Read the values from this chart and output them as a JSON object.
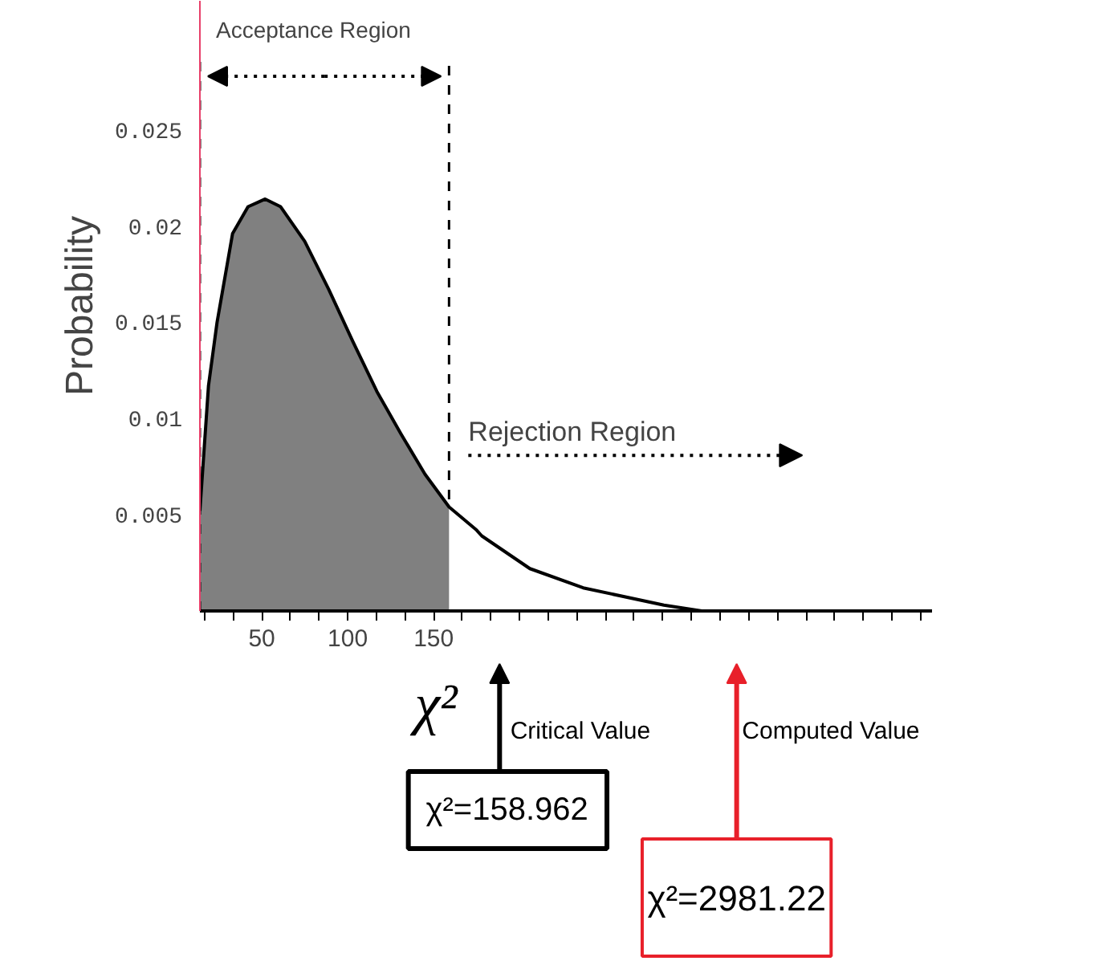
{
  "chart_data": {
    "type": "line",
    "xlabel": "χ²",
    "ylabel": "Probability",
    "xlim": [
      14,
      440
    ],
    "ylim": [
      0,
      0.0317
    ],
    "xticks": [
      {
        "value": 16.7,
        "label": null
      },
      {
        "value": 33.3,
        "label": null
      },
      50,
      {
        "value": 66.7,
        "label": null
      },
      {
        "value": 83.3,
        "label": null
      },
      100,
      {
        "value": 116.7,
        "label": null
      },
      {
        "value": 133.3,
        "label": null
      },
      150,
      {
        "value": 166.7,
        "label": null
      },
      {
        "value": 183.3,
        "label": null
      },
      {
        "value": 200,
        "label": null
      },
      {
        "value": 216.7,
        "label": null
      },
      {
        "value": 233.3,
        "label": null
      },
      {
        "value": 250,
        "label": null
      },
      {
        "value": 266.7,
        "label": null
      },
      {
        "value": 283.3,
        "label": null
      },
      {
        "value": 300,
        "label": null
      },
      {
        "value": 316.7,
        "label": null
      },
      {
        "value": 333.3,
        "label": null
      },
      {
        "value": 350,
        "label": null
      },
      {
        "value": 366.7,
        "label": null
      },
      {
        "value": 383.3,
        "label": null
      },
      {
        "value": 400,
        "label": null
      },
      {
        "value": 416.7,
        "label": null
      },
      {
        "value": 433.3,
        "label": null
      }
    ],
    "yticks": [
      0.005,
      0.01,
      0.015,
      0.02,
      0.025
    ],
    "series": [
      {
        "type": "area",
        "color": "#808080",
        "x": [
          14,
          19,
          24,
          33,
          42,
          52,
          61,
          75,
          89,
          103,
          117,
          131,
          145,
          158.962
        ],
        "values": [
          0.0052,
          0.0117,
          0.015,
          0.0196,
          0.021,
          0.0214,
          0.021,
          0.0192,
          0.0167,
          0.014,
          0.0114,
          0.0092,
          0.0071,
          0.0054
        ]
      },
      {
        "color": "#000000",
        "x": [
          14,
          19,
          24,
          33,
          42,
          52,
          61,
          75,
          89,
          103,
          117,
          131,
          145,
          159,
          175,
          178,
          206,
          237,
          284,
          306,
          356
        ],
        "values": [
          0.0052,
          0.0117,
          0.015,
          0.0196,
          0.021,
          0.0214,
          0.021,
          0.0192,
          0.0167,
          0.014,
          0.0114,
          0.0092,
          0.0071,
          0.0054,
          0.0042,
          0.0039,
          0.0022,
          0.0012,
          0.0003,
          0,
          0
        ]
      }
    ],
    "ref_lines": [
      {
        "axis": "x",
        "value": 14,
        "line_style": "dashed",
        "color": "#000000"
      },
      {
        "axis": "x",
        "value": 158.962,
        "line_style": "dashed",
        "color": "#000000"
      }
    ],
    "annotations": [
      "Acceptance Region",
      "Rejection Region",
      "Critical Value",
      "Computed Value",
      "χ²=158.962",
      "χ²=2981.22"
    ],
    "grid": false
  }
}
